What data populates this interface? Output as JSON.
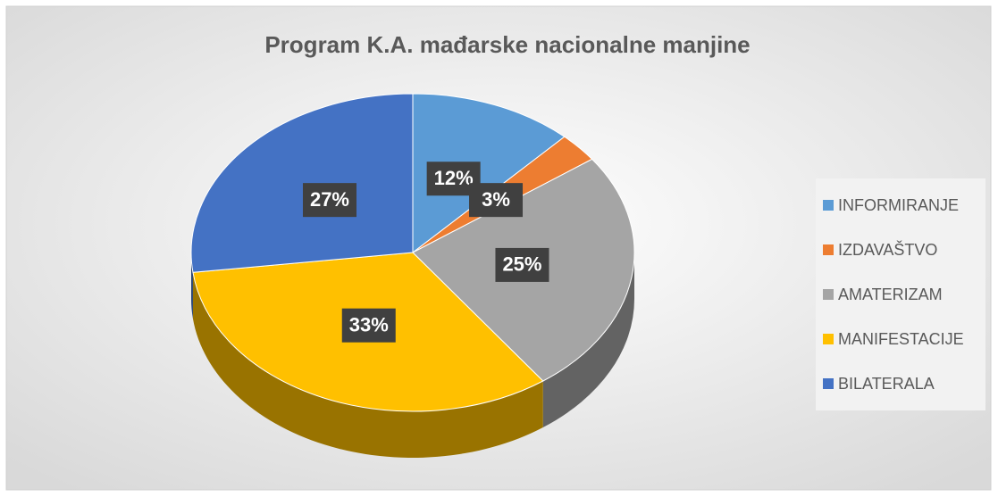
{
  "chart_data": {
    "type": "pie",
    "title": "Program K.A. mađarske nacionalne manjine",
    "categories": [
      "INFORMIRANJE",
      "IZDAVAŠTVO",
      "AMATERIZAM",
      "MANIFESTACIJE",
      "BILATERALA"
    ],
    "values": [
      12,
      3,
      25,
      33,
      27
    ],
    "value_labels": [
      "12%",
      "3%",
      "25%",
      "33%",
      "27%"
    ],
    "colors": [
      "#5b9bd5",
      "#ed7d31",
      "#a5a5a5",
      "#ffc000",
      "#4472c4"
    ],
    "legend": "right"
  }
}
